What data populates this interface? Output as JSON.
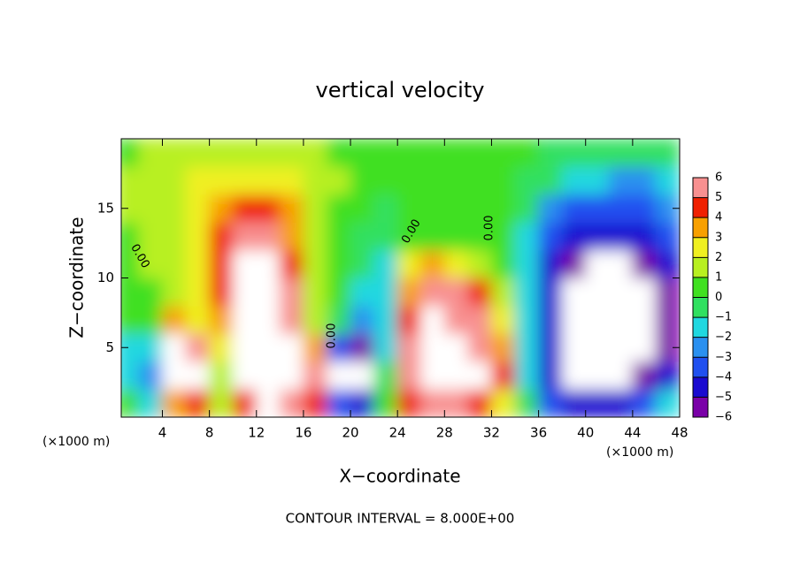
{
  "chart_data": {
    "type": "heatmap",
    "title": "vertical velocity",
    "x_label": "X−coordinate",
    "y_label": "Z−coordinate",
    "x_unit_left": "(×1000 m)",
    "x_unit_right": "(×1000 m)",
    "footer": "CONTOUR INTERVAL = 8.000E+00",
    "contour_labels": [
      "0.00",
      "0.00",
      "0.00",
      "0.00"
    ],
    "xlim": [
      0.5,
      48
    ],
    "ylim": [
      0,
      20
    ],
    "xticks": [
      4,
      8,
      12,
      16,
      20,
      24,
      28,
      32,
      36,
      40,
      44,
      48
    ],
    "yticks": [
      5,
      10,
      15
    ],
    "x": [
      1,
      3,
      5,
      7,
      9,
      11,
      13,
      15,
      17,
      19,
      21,
      23,
      25,
      27,
      29,
      31,
      33,
      35,
      37,
      39,
      41,
      43,
      45,
      47
    ],
    "y": [
      1,
      3,
      5,
      7,
      9,
      11,
      13,
      15,
      17,
      19
    ],
    "z": [
      [
        0,
        -2,
        3,
        4,
        1,
        4,
        7,
        5,
        4,
        -4,
        -5,
        0,
        4,
        5,
        5,
        4,
        2,
        -1,
        -4,
        -5,
        -5,
        -5,
        -4,
        -2
      ],
      [
        -2,
        -3,
        7,
        7,
        1,
        7,
        8,
        7,
        5,
        -7,
        -7,
        -1,
        5,
        8,
        8,
        7,
        4,
        -2,
        -5,
        -7,
        -7,
        -7,
        -6,
        -5
      ],
      [
        -2,
        -2,
        7,
        5,
        2,
        7,
        8,
        7,
        3,
        -4,
        -6,
        -2,
        5,
        8,
        7,
        5,
        3,
        -2,
        -5,
        -7,
        -8,
        -8,
        -7,
        -6
      ],
      [
        0,
        0,
        3,
        2,
        3,
        7,
        8,
        6,
        1,
        -1,
        -3,
        -2,
        4,
        7,
        6,
        5,
        2,
        -2,
        -5,
        -7,
        -8,
        -8,
        -7,
        -6
      ],
      [
        0,
        0,
        1,
        2,
        4,
        7,
        8,
        5,
        1,
        0,
        -2,
        -2,
        3,
        5,
        5,
        4,
        1,
        -2,
        -5,
        -7,
        -7,
        -7,
        -7,
        -6
      ],
      [
        0.5,
        1,
        1,
        2,
        4,
        7,
        7,
        4,
        1,
        0,
        -1,
        -2,
        2,
        3,
        2,
        1,
        0,
        -2,
        -5,
        -6,
        -7,
        -7,
        -6,
        -5
      ],
      [
        0.5,
        1,
        1,
        2,
        4,
        6,
        6,
        3,
        1,
        0,
        -1,
        -1,
        0.5,
        0.5,
        0.5,
        0,
        0,
        -2,
        -4,
        -5,
        -5,
        -5,
        -5,
        -4
      ],
      [
        1,
        1,
        1.5,
        2,
        3,
        4,
        4,
        3,
        1.5,
        0.5,
        0,
        -0.5,
        0.5,
        0.5,
        0.5,
        0,
        0,
        -1,
        -3,
        -4,
        -4,
        -4,
        -4,
        -3
      ],
      [
        1,
        1.5,
        1.5,
        2,
        2,
        2,
        2,
        2,
        1.5,
        1,
        0.5,
        0.5,
        0.5,
        0.5,
        0.5,
        0.5,
        0,
        -0.5,
        -1,
        -2,
        -2,
        -3,
        -3,
        -2
      ],
      [
        0.5,
        1,
        1,
        1,
        1,
        1,
        1,
        1,
        1,
        0.5,
        0.5,
        0.5,
        0.5,
        0.5,
        0.5,
        0.5,
        0.5,
        0,
        -0.5,
        -0.5,
        -1,
        -1,
        -1,
        -1
      ]
    ],
    "clim": [
      -6,
      6
    ],
    "colors": [
      "#7a00a8",
      "#1a0ad0",
      "#2050f0",
      "#2a90f0",
      "#20d8e0",
      "#30e060",
      "#40e020",
      "#b8f020",
      "#f0f020",
      "#f8a000",
      "#f02000",
      "#f89090"
    ],
    "out_of_range_color": "#ffffff",
    "cticks": [
      {
        "value": -6,
        "label": "−6"
      },
      {
        "value": -5,
        "label": "−5"
      },
      {
        "value": -4,
        "label": "−4"
      },
      {
        "value": -3,
        "label": "−3"
      },
      {
        "value": -2,
        "label": "−2"
      },
      {
        "value": -1,
        "label": "−1"
      },
      0,
      1,
      2,
      3,
      4,
      5,
      6
    ]
  }
}
